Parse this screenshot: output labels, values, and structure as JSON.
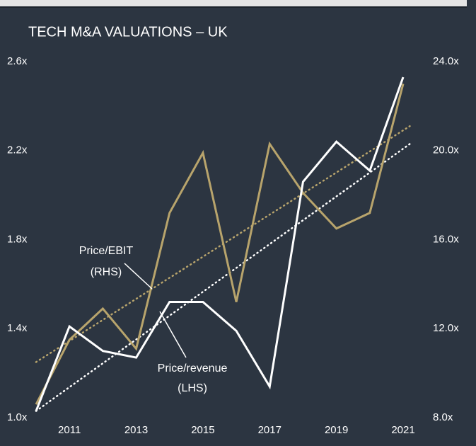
{
  "chart_data": {
    "type": "line",
    "title": "TECH M&A VALUATIONS – UK",
    "x": [
      2010,
      2011,
      2012,
      2013,
      2014,
      2015,
      2016,
      2017,
      2018,
      2019,
      2020,
      2021
    ],
    "xlim": [
      2010,
      2021
    ],
    "xticks": [
      2011,
      2013,
      2015,
      2017,
      2019,
      2021
    ],
    "ylim": [
      1.0,
      2.6
    ],
    "yticks": [
      {
        "value": 1.0,
        "label": "1.0x"
      },
      {
        "value": 1.4,
        "label": "1.4x"
      },
      {
        "value": 1.8,
        "label": "1.8x"
      },
      {
        "value": 2.2,
        "label": "2.2x"
      },
      {
        "value": 2.6,
        "label": "2.6x"
      }
    ],
    "y2lim": [
      8.0,
      24.0
    ],
    "y2ticks": [
      {
        "value": 8.0,
        "label": "8.0x"
      },
      {
        "value": 12.0,
        "label": "12.0x"
      },
      {
        "value": 16.0,
        "label": "16.0x"
      },
      {
        "value": 20.0,
        "label": "20.0x"
      },
      {
        "value": 24.0,
        "label": "24.0x"
      }
    ],
    "series": [
      {
        "color": "#b8a46c",
        "axis": "y2",
        "values": [
          8.6,
          11.5,
          12.9,
          11.1,
          17.2,
          19.9,
          13.2,
          20.3,
          18.1,
          16.5,
          17.2,
          23.0
        ]
      },
      {
        "color": "#ffffff",
        "values": [
          1.03,
          1.41,
          1.3,
          1.27,
          1.52,
          1.52,
          1.39,
          1.14,
          2.06,
          2.24,
          2.11,
          2.53
        ]
      }
    ],
    "trends": [
      {
        "color": "#b8a46c",
        "axis": "y2",
        "x": [
          2010,
          2021.2
        ],
        "values": [
          10.5,
          21.1
        ]
      },
      {
        "color": "#ffffff",
        "x": [
          2010,
          2021.2
        ],
        "values": [
          1.03,
          2.23
        ]
      }
    ],
    "annotations": [
      {
        "lines": [
          "Price/EBIT",
          "(RHS)"
        ]
      },
      {
        "lines": [
          "Price/revenue",
          "(LHS)"
        ]
      }
    ]
  }
}
